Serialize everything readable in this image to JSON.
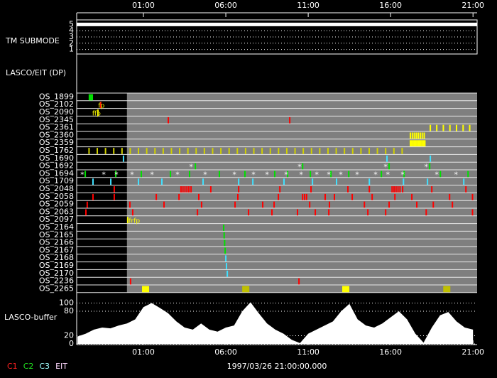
{
  "chart_data": {
    "type": "timeline",
    "xlim": [
      -3.05,
      21.25
    ],
    "xticks": [
      {
        "value": 1,
        "label": "01:00"
      },
      {
        "value": 6,
        "label": "06:00"
      },
      {
        "value": 11,
        "label": "11:00"
      },
      {
        "value": 16,
        "label": "16:00"
      },
      {
        "value": 21,
        "label": "21:00"
      }
    ],
    "footer": "1997/03/26 21:00:00.000",
    "legend": [
      {
        "name": "C1",
        "color": "#ff2020"
      },
      {
        "name": "C2",
        "color": "#20e020"
      },
      {
        "name": "C3",
        "color": "#a0ffff"
      },
      {
        "name": "EIT",
        "color": "#ffd8ff"
      }
    ],
    "submode": {
      "label": "TM SUBMODE",
      "ylim": [
        0.5,
        5.5
      ],
      "yticks": [
        1,
        2,
        3,
        4,
        5
      ],
      "level": 5,
      "color": "#ffffff"
    },
    "panel_label": "LASCO/EIT (DP)",
    "rows": [
      {
        "name": "OS_1899",
        "events": [
          {
            "color": "#00e000",
            "times": [
              -2.28,
              -2.22,
              -2.16,
              -2.1
            ]
          }
        ]
      },
      {
        "name": "OS_2102",
        "events": [
          {
            "color": "#ff0000",
            "times": [
              -1.59
            ]
          }
        ],
        "labels": [
          {
            "text": "fp",
            "x": -1.55,
            "color": "#ffff00"
          }
        ]
      },
      {
        "name": "OS_2090",
        "events": [
          {
            "color": "#ffff00",
            "times": [
              -1.76
            ]
          }
        ],
        "labels": [
          {
            "text": "ffp",
            "x": -1.85,
            "color": "#ffff00"
          }
        ]
      },
      {
        "name": "OS_2345",
        "events": [
          {
            "color": "#ff0000",
            "times": [
              2.51,
              9.88
            ]
          }
        ]
      },
      {
        "name": "OS_2361",
        "events": [
          {
            "color": "#ffff00",
            "times": [
              18.41,
              18.8,
              19.2,
              19.6,
              20.0,
              20.4,
              20.8
            ]
          }
        ]
      },
      {
        "name": "OS_2360",
        "events": [
          {
            "color": "#ffff00",
            "times": [
              17.2,
              17.32,
              17.44,
              17.56,
              17.68,
              17.8,
              17.92,
              18.04
            ]
          }
        ]
      },
      {
        "name": "OS_2359",
        "events": [
          {
            "color": "#ffff00",
            "times": [
              17.2,
              17.28,
              17.36,
              17.44,
              17.52,
              17.6,
              17.68,
              17.76,
              17.84,
              17.92,
              18.0,
              18.08
            ]
          }
        ]
      },
      {
        "name": "OS_1762",
        "events": [
          {
            "color": "#d0d000",
            "times": [
              -2.3,
              -1.8,
              -1.3,
              -0.8,
              -0.3,
              0.2,
              0.7,
              1.2,
              1.7,
              2.2,
              2.7,
              3.2,
              3.7,
              4.2,
              4.7,
              5.2,
              5.7,
              6.2,
              6.7,
              7.2,
              7.7,
              8.2,
              8.7,
              9.2,
              9.7,
              10.2,
              10.7,
              11.2,
              11.7,
              12.2,
              12.7,
              13.2,
              13.7,
              14.2,
              14.7,
              15.2,
              15.7,
              16.2,
              16.7
            ]
          }
        ]
      },
      {
        "name": "OS_1690",
        "events": [
          {
            "color": "#40e0ff",
            "times": [
              -0.21,
              15.78,
              18.41
            ]
          }
        ]
      },
      {
        "name": "OS_1692",
        "events": [
          {
            "color": "#00e000",
            "times": [
              4.15,
              10.66,
              15.91,
              18.37
            ]
          },
          {
            "color": "#ffffff",
            "symbol": "*",
            "times": [
              3.89,
              10.48,
              15.7,
              18.16
            ]
          }
        ]
      },
      {
        "name": "OS_1694",
        "events": [
          {
            "color": "#00e000",
            "times": [
              -2.53,
              -0.68,
              0.87,
              2.64,
              3.8,
              5.61,
              7.16,
              8.97,
              9.75,
              11.13,
              12.38,
              13.46,
              15.44,
              16.82,
              19.02,
              20.7
            ]
          },
          {
            "color": "#ffffff",
            "symbol": "*",
            "times": [
              -2.71,
              -1.41,
              -0.64,
              0.31,
              1.52,
              3.07,
              4.75,
              6.52,
              7.68,
              8.5,
              9.66,
              10.57,
              11.52,
              12.25,
              12.98,
              13.97,
              15.09,
              15.83,
              16.73,
              18.8,
              19.97
            ]
          }
        ]
      },
      {
        "name": "OS_1709",
        "events": [
          {
            "color": "#40e0ff",
            "times": [
              -2.06,
              -0.98,
              0.7,
              2.12,
              4.62,
              6.78,
              7.64,
              9.53,
              11.26,
              12.72,
              14.71,
              16.78,
              18.24,
              20.44
            ]
          }
        ]
      },
      {
        "name": "OS_2048",
        "events": [
          {
            "color": "#ff0000",
            "times": [
              -0.77,
              3.28,
              3.4,
              3.52,
              3.64,
              3.76,
              3.89,
              5.09,
              6.78,
              9.28,
              11.17,
              13.41,
              14.71,
              16.09,
              16.21,
              16.33,
              16.45,
              16.57,
              16.73,
              18.5,
              20.57
            ]
          }
        ]
      },
      {
        "name": "OS_2058",
        "events": [
          {
            "color": "#ff0000",
            "times": [
              -2.06,
              -0.77,
              1.78,
              3.16,
              4.36,
              6.73,
              9.19,
              10.66,
              10.78,
              10.9,
              12.03,
              12.59,
              13.67,
              14.88,
              16.26,
              17.29,
              19.58,
              20.97
            ]
          }
        ]
      },
      {
        "name": "OS_2059",
        "events": [
          {
            "color": "#ff0000",
            "times": [
              -2.41,
              0.18,
              2.25,
              4.53,
              6.56,
              8.24,
              8.93,
              11.09,
              12.29,
              14.41,
              15.91,
              17.59,
              18.59,
              19.75
            ]
          }
        ]
      },
      {
        "name": "OS_2063",
        "events": [
          {
            "color": "#ff0000",
            "times": [
              -2.49,
              0.35,
              4.28,
              7.38,
              8.8,
              10.35,
              11.43,
              12.25,
              14.62,
              15.7,
              18.16,
              20.97
            ]
          }
        ]
      },
      {
        "name": "OS_2097",
        "events": [
          {
            "color": "#ffff00",
            "times": [
              0.05
            ]
          }
        ],
        "labels": [
          {
            "text": "frfp",
            "x": 0.45,
            "color": "#ffff00"
          }
        ]
      },
      {
        "name": "OS_2164",
        "events": [
          {
            "color": "#00e000",
            "times": [
              5.87
            ]
          }
        ]
      },
      {
        "name": "OS_2165",
        "events": [
          {
            "color": "#00e000",
            "times": [
              5.9
            ]
          }
        ]
      },
      {
        "name": "OS_2166",
        "events": [
          {
            "color": "#00e000",
            "times": [
              5.93
            ]
          }
        ]
      },
      {
        "name": "OS_2167",
        "events": [
          {
            "color": "#00e000",
            "times": [
              5.96
            ]
          }
        ]
      },
      {
        "name": "OS_2168",
        "events": [
          {
            "color": "#40e0ff",
            "times": [
              6.0
            ]
          }
        ]
      },
      {
        "name": "OS_2169",
        "events": [
          {
            "color": "#40e0ff",
            "times": [
              6.04
            ]
          }
        ]
      },
      {
        "name": "OS_2170",
        "events": [
          {
            "color": "#40e0ff",
            "times": [
              6.09
            ]
          }
        ]
      },
      {
        "name": "OS_2236",
        "events": [
          {
            "color": "#ff0000",
            "times": [
              0.22,
              10.44
            ]
          }
        ]
      },
      {
        "name": "OS_2265",
        "mark": "block",
        "events": [
          {
            "color": "#ffff00",
            "times": [
              1.13,
              13.28
            ]
          },
          {
            "color": "#c0c000",
            "times": [
              7.21,
              19.41
            ]
          }
        ]
      }
    ],
    "buffer": {
      "label": "LASCO-buffer",
      "ylim": [
        0,
        120
      ],
      "yticks": [
        0,
        20,
        80,
        100
      ],
      "color": "#ffffff",
      "x": [
        -3,
        -2.5,
        -2,
        -1.5,
        -1,
        -0.5,
        0,
        0.5,
        1,
        1.5,
        2,
        2.5,
        3,
        3.5,
        4,
        4.5,
        5,
        5.5,
        6,
        6.5,
        7,
        7.5,
        8,
        8.5,
        9,
        9.5,
        10,
        10.5,
        11,
        11.5,
        12,
        12.5,
        13,
        13.5,
        14,
        14.5,
        15,
        15.5,
        16,
        16.5,
        17,
        17.5,
        18,
        18.5,
        19,
        19.5,
        20,
        20.5,
        21
      ],
      "values": [
        18,
        25,
        35,
        40,
        38,
        45,
        50,
        60,
        90,
        100,
        88,
        75,
        55,
        40,
        35,
        50,
        35,
        30,
        40,
        45,
        80,
        102,
        75,
        50,
        35,
        25,
        10,
        2,
        25,
        35,
        45,
        55,
        80,
        98,
        60,
        45,
        40,
        50,
        65,
        80,
        60,
        25,
        3,
        40,
        70,
        78,
        55,
        40,
        35
      ]
    }
  }
}
